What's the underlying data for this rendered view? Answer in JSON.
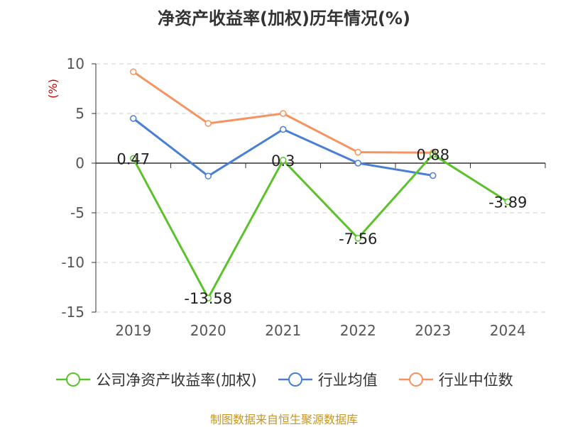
{
  "title": "净资产收益率(加权)历年情况(%)",
  "source_note": "制图数据来自恒生聚源数据库",
  "chart_data": {
    "type": "line",
    "title": "净资产收益率(加权)历年情况(%)",
    "ylabel": "(%)",
    "ylim": [
      -15,
      10
    ],
    "yticks": [
      10,
      5,
      0,
      -5,
      -10,
      -15
    ],
    "grid": true,
    "legend_position": "bottom",
    "categories": [
      "2019",
      "2020",
      "2021",
      "2022",
      "2023",
      "2024"
    ],
    "series": [
      {
        "name": "公司净资产收益率(加权)",
        "color": "#5cc22c",
        "values": [
          0.47,
          -13.58,
          0.3,
          -7.56,
          0.88,
          -3.89
        ],
        "labels": [
          "0.47",
          "-13.58",
          "0.3",
          "-7.56",
          "0.88",
          "-3.89"
        ]
      },
      {
        "name": "行业均值",
        "color": "#4a7fd6",
        "values": [
          4.5,
          -1.3,
          3.4,
          0.0,
          -1.25,
          null
        ]
      },
      {
        "name": "行业中位数",
        "color": "#f59460",
        "values": [
          9.2,
          4.0,
          5.0,
          1.1,
          1.05,
          null
        ]
      }
    ]
  }
}
